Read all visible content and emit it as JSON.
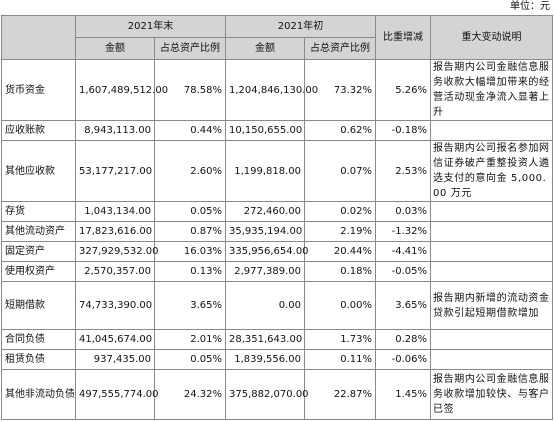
{
  "unit_label": "单位：元",
  "header": {
    "item": "",
    "end_year": "2021年末",
    "begin_year": "2021年初",
    "amount": "金额",
    "ratio": "占总资产比例",
    "change": "比重增减",
    "explanation": "重大变动说明"
  },
  "rows": [
    {
      "name": "货币资金",
      "end_amount": "1,607,489,512.00",
      "end_ratio": "78.58%",
      "begin_amount": "1,204,846,130.00",
      "begin_ratio": "73.32%",
      "change": "5.26%",
      "note": "报告期内公司金融信息服务收款大幅增加带来的经营活动现金净流入显著上升"
    },
    {
      "name": "应收账款",
      "end_amount": "8,943,113.00",
      "end_ratio": "0.44%",
      "begin_amount": "10,150,655.00",
      "begin_ratio": "0.62%",
      "change": "-0.18%",
      "note": ""
    },
    {
      "name": "其他应收款",
      "end_amount": "53,177,217.00",
      "end_ratio": "2.60%",
      "begin_amount": "1,199,818.00",
      "begin_ratio": "0.07%",
      "change": "2.53%",
      "note": "报告期内公司报名参加网信证券破产重整投资人遴选支付的意向金 5,000.00 万元"
    },
    {
      "name": "存货",
      "end_amount": "1,043,134.00",
      "end_ratio": "0.05%",
      "begin_amount": "272,460.00",
      "begin_ratio": "0.02%",
      "change": "0.03%",
      "note": ""
    },
    {
      "name": "其他流动资产",
      "end_amount": "17,823,616.00",
      "end_ratio": "0.87%",
      "begin_amount": "35,935,194.00",
      "begin_ratio": "2.19%",
      "change": "-1.32%",
      "note": ""
    },
    {
      "name": "固定资产",
      "end_amount": "327,929,532.00",
      "end_ratio": "16.03%",
      "begin_amount": "335,956,654.00",
      "begin_ratio": "20.44%",
      "change": "-4.41%",
      "note": ""
    },
    {
      "name": "使用权资产",
      "end_amount": "2,570,357.00",
      "end_ratio": "0.13%",
      "begin_amount": "2,977,389.00",
      "begin_ratio": "0.18%",
      "change": "-0.05%",
      "note": ""
    },
    {
      "name": "短期借款",
      "end_amount": "74,733,390.00",
      "end_ratio": "3.65%",
      "begin_amount": "0.00",
      "begin_ratio": "0.00%",
      "change": "3.65%",
      "note": "报告期内新增的流动资金贷款引起短期借款增加"
    },
    {
      "name": "合同负债",
      "end_amount": "41,045,674.00",
      "end_ratio": "2.01%",
      "begin_amount": "28,351,643.00",
      "begin_ratio": "1.73%",
      "change": "0.28%",
      "note": ""
    },
    {
      "name": "租赁负债",
      "end_amount": "937,435.00",
      "end_ratio": "0.05%",
      "begin_amount": "1,839,556.00",
      "begin_ratio": "0.11%",
      "change": "-0.06%",
      "note": ""
    },
    {
      "name": "其他非流动负债",
      "end_amount": "497,555,774.00",
      "end_ratio": "24.32%",
      "begin_amount": "375,882,070.00",
      "begin_ratio": "22.87%",
      "change": "1.45%",
      "note": "报告期内公司金融信息服务收款增加较快、与客户已签"
    }
  ]
}
